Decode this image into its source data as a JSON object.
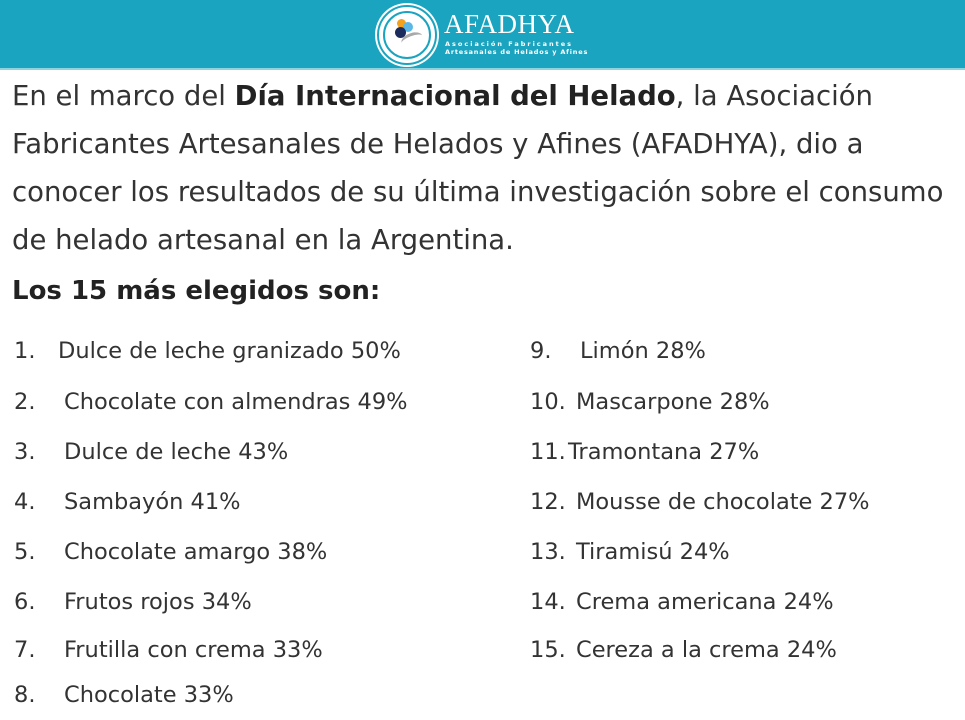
{
  "header": {
    "brand": "AFADHYA",
    "brand_sub_1": "Asociación Fabricantes",
    "brand_sub_2": "Artesanales de Helados y Afines"
  },
  "intro": {
    "before": "En el marco del ",
    "bold": "Día Internacional del Helado",
    "after": ", la Asociación Fabricantes Artesanales de Helados y Afines (AFADHYA), dio a conocer los resultados de su última investigación sobre el consumo de helado artesanal en la Argentina."
  },
  "heading": "Los 15 más elegidos son:",
  "items": [
    {
      "num": "1.",
      "text": "Dulce de leche granizado 50%"
    },
    {
      "num": "2.",
      "text": "Chocolate con almendras 49%"
    },
    {
      "num": "3.",
      "text": "Dulce de leche 43%"
    },
    {
      "num": "4.",
      "text": "Sambayón 41%"
    },
    {
      "num": "5.",
      "text": "Chocolate amargo 38%"
    },
    {
      "num": "6.",
      "text": "Frutos rojos 34%"
    },
    {
      "num": "7.",
      "text": "Frutilla con crema 33%"
    },
    {
      "num": "8.",
      "text": "Chocolate 33%"
    },
    {
      "num": "9.",
      "text": "Limón 28%"
    },
    {
      "num": "10.",
      "text": "Mascarpone 28%"
    },
    {
      "num": "11.",
      "text": "Tramontana 27%"
    },
    {
      "num": "12.",
      "text": "Mousse de chocolate 27%"
    },
    {
      "num": "13.",
      "text": "Tiramisú 24%"
    },
    {
      "num": "14.",
      "text": "Crema americana 24%"
    },
    {
      "num": "15.",
      "text": "Cereza a la crema 24%"
    }
  ]
}
